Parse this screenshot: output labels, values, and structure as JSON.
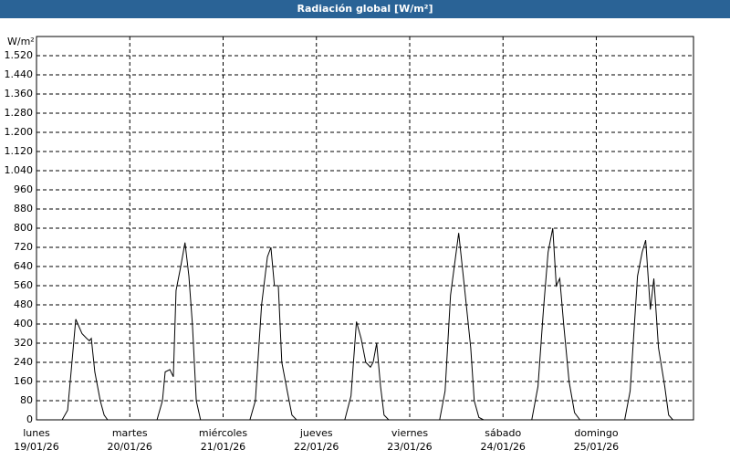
{
  "chart_data": {
    "type": "line",
    "title": "Radiación global [W/m²]",
    "y_label": "W/m²",
    "x": [
      0,
      6.6,
      8.0,
      8.9,
      10.1,
      11.7,
      12.9,
      13.6,
      14.1,
      15.0,
      16.4,
      17.4,
      18.3,
      31.0,
      32.4,
      33.1,
      34.3,
      35.2,
      35.9,
      37.1,
      38.2,
      39.2,
      40.1,
      41.1,
      42.2,
      54.9,
      56.3,
      57.9,
      59.4,
      60.3,
      61.2,
      62.2,
      63.1,
      64.5,
      65.7,
      66.9,
      79.3,
      80.9,
      82.3,
      83.5,
      84.7,
      85.9,
      86.6,
      87.5,
      88.5,
      89.4,
      90.6,
      103.7,
      105.1,
      106.5,
      108.6,
      110.3,
      111.7,
      112.6,
      113.8,
      115.0,
      127.4,
      129.0,
      130.4,
      131.6,
      132.8,
      133.7,
      134.6,
      135.6,
      137.0,
      138.4,
      139.8,
      151.3,
      152.7,
      154.6,
      155.8,
      156.7,
      157.9,
      158.8,
      160.0,
      161.6,
      162.6,
      163.7,
      168.9
    ],
    "series": [
      {
        "name": "Radiación global",
        "color": "#000000",
        "values": [
          0,
          0,
          40,
          200,
          420,
          360,
          340,
          330,
          340,
          200,
          80,
          20,
          0,
          0,
          80,
          200,
          210,
          180,
          540,
          640,
          740,
          600,
          400,
          80,
          0,
          0,
          80,
          480,
          680,
          720,
          560,
          560,
          240,
          120,
          20,
          0,
          0,
          100,
          410,
          340,
          240,
          220,
          240,
          320,
          140,
          20,
          0,
          0,
          120,
          520,
          780,
          520,
          300,
          80,
          10,
          0,
          0,
          140,
          460,
          700,
          800,
          560,
          590,
          400,
          160,
          30,
          0,
          0,
          120,
          600,
          700,
          750,
          460,
          590,
          300,
          140,
          20,
          0,
          0
        ]
      }
    ],
    "xlim": [
      0,
      169
    ],
    "xticks": [
      {
        "value": 0,
        "label": "lunes",
        "date": "19/01/26"
      },
      {
        "value": 24,
        "label": "martes",
        "date": "20/01/26"
      },
      {
        "value": 48,
        "label": "miércoles",
        "date": "21/01/26"
      },
      {
        "value": 72,
        "label": "jueves",
        "date": "22/01/26"
      },
      {
        "value": 96,
        "label": "viernes",
        "date": "23/01/26"
      },
      {
        "value": 120,
        "label": "sábado",
        "date": "24/01/26"
      },
      {
        "value": 144,
        "label": "domingo",
        "date": "25/01/26"
      }
    ],
    "ylim": [
      0,
      1600
    ],
    "yticks": [
      0,
      80,
      160,
      240,
      320,
      400,
      480,
      560,
      640,
      720,
      800,
      880,
      960,
      {
        "value": 1040,
        "label": "1.040"
      },
      {
        "value": 1120,
        "label": "1.120"
      },
      {
        "value": 1200,
        "label": "1.200"
      },
      {
        "value": 1280,
        "label": "1.280"
      },
      {
        "value": 1360,
        "label": "1.360"
      },
      {
        "value": 1440,
        "label": "1.440"
      },
      {
        "value": 1520,
        "label": "1.520"
      }
    ],
    "grid": true
  }
}
